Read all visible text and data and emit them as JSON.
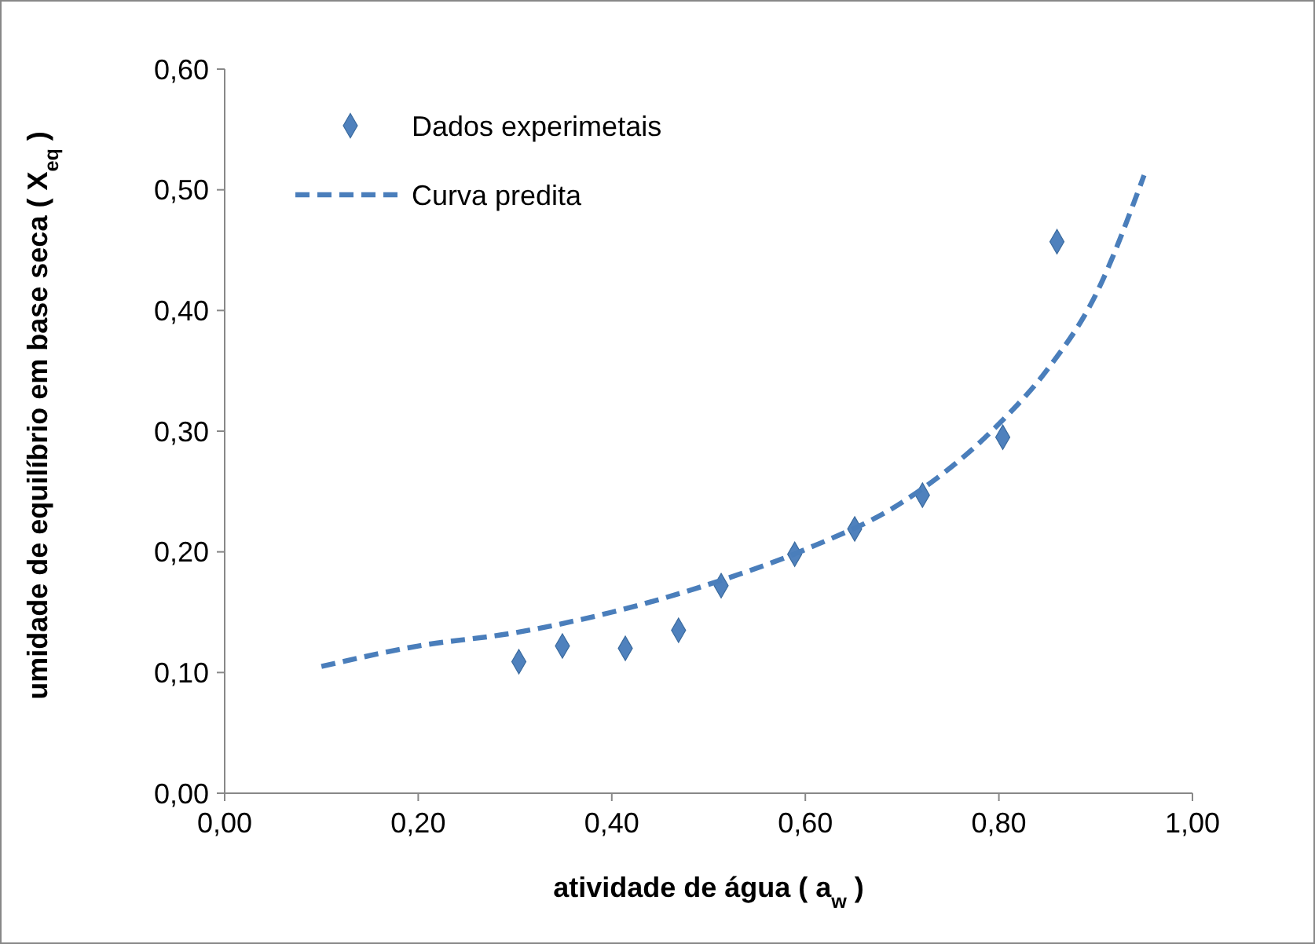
{
  "chart_data": {
    "type": "scatter",
    "xlabel": "atividade de água ( a$_{w}$ )",
    "ylabel": "umidade de equilíbrio em base seca  ( X$_{eq}$ )",
    "xlim": [
      0,
      1
    ],
    "ylim": [
      0,
      0.6
    ],
    "xticks": [
      {
        "value": 0,
        "label": "0,00"
      },
      {
        "value": 0.2,
        "label": "0,20"
      },
      {
        "value": 0.4,
        "label": "0,40"
      },
      {
        "value": 0.6,
        "label": "0,60"
      },
      {
        "value": 0.8,
        "label": "0,80"
      },
      {
        "value": 1,
        "label": "1,00"
      }
    ],
    "yticks": [
      {
        "value": 0,
        "label": "0,00"
      },
      {
        "value": 0.1,
        "label": "0,10"
      },
      {
        "value": 0.2,
        "label": "0,20"
      },
      {
        "value": 0.3,
        "label": "0,30"
      },
      {
        "value": 0.4,
        "label": "0,40"
      },
      {
        "value": 0.5,
        "label": "0,50"
      },
      {
        "value": 0.6,
        "label": "0,60"
      }
    ],
    "grid": false,
    "legend": "top left",
    "series": [
      {
        "name": "Dados experimetais",
        "marker": "diamond",
        "color": "#4f81bd",
        "x": [
          0.304,
          0.349,
          0.414,
          0.469,
          0.513,
          0.589,
          0.651,
          0.721,
          0.804,
          0.86
        ],
        "values": [
          0.109,
          0.122,
          0.12,
          0.135,
          0.172,
          0.198,
          0.219,
          0.247,
          0.295,
          0.457
        ]
      },
      {
        "name": "Curva predita",
        "type": "line",
        "marker": "none",
        "line_style": "dashed",
        "color": "#4a7ebb",
        "x": [
          0.1,
          0.2,
          0.3,
          0.4,
          0.5,
          0.6,
          0.7,
          0.8,
          0.85,
          0.9,
          0.95
        ],
        "values": [
          0.105,
          0.122,
          0.133,
          0.15,
          0.173,
          0.202,
          0.241,
          0.306,
          0.351,
          0.413,
          0.512
        ]
      }
    ]
  }
}
